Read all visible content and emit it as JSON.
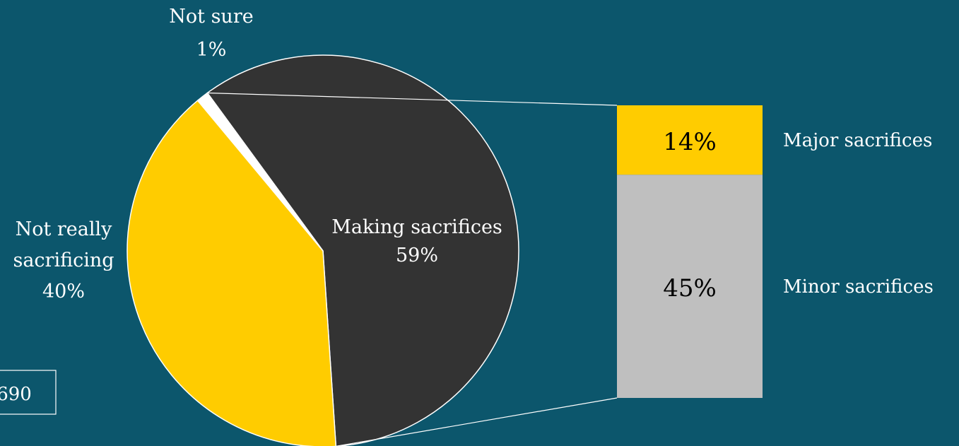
{
  "colors": {
    "background": "#0c566c",
    "making": "#333333",
    "not_really": "#ffcc00",
    "not_sure": "#ffffff",
    "major": "#ffcc00",
    "minor": "#bfbfbf",
    "outline": "#ffffff"
  },
  "chart_data": {
    "type": "pie",
    "slices": [
      {
        "label": "Making sacrifices",
        "value": 59,
        "value_label": "59%"
      },
      {
        "label": "Not really sacrificing",
        "label_lines": [
          "Not really",
          "sacrificing"
        ],
        "value": 40,
        "value_label": "40%"
      },
      {
        "label": "Not sure",
        "value": 1,
        "value_label": "1%"
      }
    ],
    "breakdown": {
      "type": "bar",
      "stacked": true,
      "of": "Making sacrifices",
      "segments": [
        {
          "label": "Major sacrifices",
          "value": 14,
          "value_label": "14%"
        },
        {
          "label": "Minor sacrifices",
          "value": 45,
          "value_label": "45%"
        }
      ]
    }
  },
  "footnote": {
    "text": "690"
  }
}
